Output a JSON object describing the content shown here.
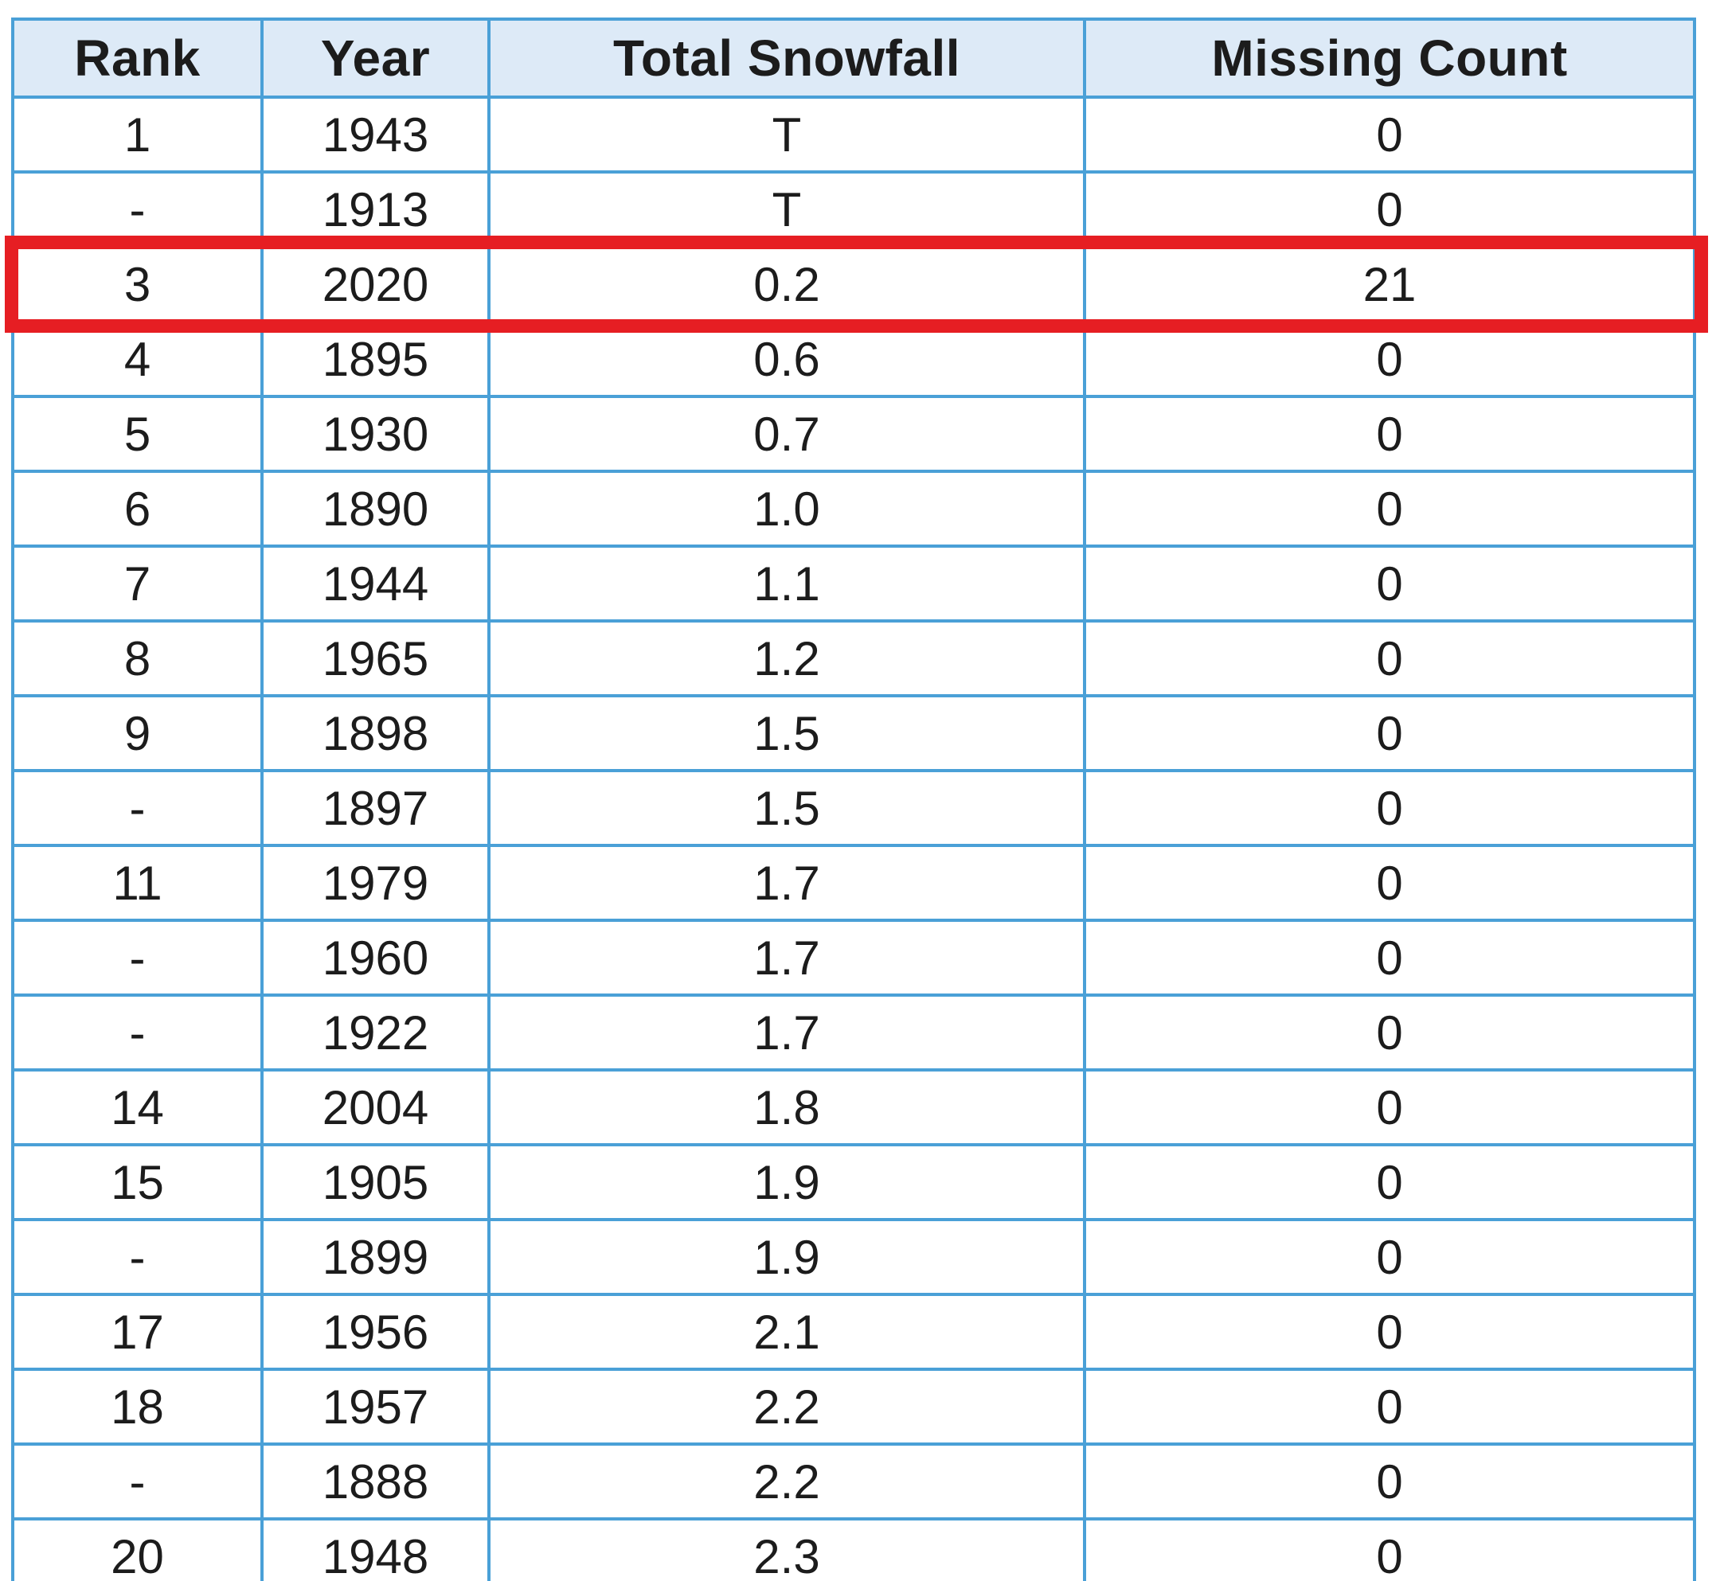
{
  "table": {
    "columns": [
      "Rank",
      "Year",
      "Total Snowfall",
      "Missing Count"
    ],
    "rows": [
      [
        "1",
        "1943",
        "T",
        "0"
      ],
      [
        "-",
        "1913",
        "T",
        "0"
      ],
      [
        "3",
        "2020",
        "0.2",
        "21"
      ],
      [
        "4",
        "1895",
        "0.6",
        "0"
      ],
      [
        "5",
        "1930",
        "0.7",
        "0"
      ],
      [
        "6",
        "1890",
        "1.0",
        "0"
      ],
      [
        "7",
        "1944",
        "1.1",
        "0"
      ],
      [
        "8",
        "1965",
        "1.2",
        "0"
      ],
      [
        "9",
        "1898",
        "1.5",
        "0"
      ],
      [
        "-",
        "1897",
        "1.5",
        "0"
      ],
      [
        "11",
        "1979",
        "1.7",
        "0"
      ],
      [
        "-",
        "1960",
        "1.7",
        "0"
      ],
      [
        "-",
        "1922",
        "1.7",
        "0"
      ],
      [
        "14",
        "2004",
        "1.8",
        "0"
      ],
      [
        "15",
        "1905",
        "1.9",
        "0"
      ],
      [
        "-",
        "1899",
        "1.9",
        "0"
      ],
      [
        "17",
        "1956",
        "2.1",
        "0"
      ],
      [
        "18",
        "1957",
        "2.2",
        "0"
      ],
      [
        "-",
        "1888",
        "2.2",
        "0"
      ],
      [
        "20",
        "1948",
        "2.3",
        "0"
      ]
    ],
    "highlighted_row_index": 2,
    "highlighted_row": {
      "rank": "3",
      "year": "2020",
      "total_snowfall": "0.2",
      "missing_count": "21"
    }
  },
  "colors": {
    "border_blue": "#4aa0d7",
    "header_bg": "#ddeaf7",
    "highlight_red": "#e61e23",
    "text": "#1c1c1c"
  }
}
